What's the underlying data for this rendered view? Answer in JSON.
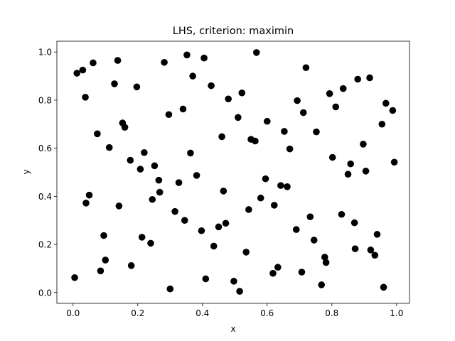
{
  "chart_data": {
    "type": "scatter",
    "title": "LHS, criterion: maximin",
    "xlabel": "x",
    "ylabel": "y",
    "xlim": [
      -0.05,
      1.04
    ],
    "ylim": [
      -0.045,
      1.045
    ],
    "xticks": [
      "0.0",
      "0.2",
      "0.4",
      "0.6",
      "0.8",
      "1.0"
    ],
    "yticks": [
      "0.0",
      "0.2",
      "0.4",
      "0.6",
      "0.8",
      "1.0"
    ],
    "grid": false,
    "marker_color": "#000000",
    "points": [
      [
        0.005,
        0.062
      ],
      [
        0.012,
        0.912
      ],
      [
        0.03,
        0.925
      ],
      [
        0.038,
        0.812
      ],
      [
        0.04,
        0.372
      ],
      [
        0.05,
        0.405
      ],
      [
        0.062,
        0.955
      ],
      [
        0.075,
        0.66
      ],
      [
        0.085,
        0.09
      ],
      [
        0.095,
        0.237
      ],
      [
        0.1,
        0.135
      ],
      [
        0.112,
        0.603
      ],
      [
        0.128,
        0.868
      ],
      [
        0.138,
        0.965
      ],
      [
        0.142,
        0.36
      ],
      [
        0.153,
        0.705
      ],
      [
        0.16,
        0.687
      ],
      [
        0.177,
        0.55
      ],
      [
        0.18,
        0.112
      ],
      [
        0.197,
        0.855
      ],
      [
        0.208,
        0.513
      ],
      [
        0.213,
        0.23
      ],
      [
        0.22,
        0.582
      ],
      [
        0.24,
        0.205
      ],
      [
        0.245,
        0.387
      ],
      [
        0.252,
        0.527
      ],
      [
        0.265,
        0.467
      ],
      [
        0.268,
        0.417
      ],
      [
        0.282,
        0.957
      ],
      [
        0.296,
        0.74
      ],
      [
        0.3,
        0.015
      ],
      [
        0.315,
        0.337
      ],
      [
        0.327,
        0.457
      ],
      [
        0.34,
        0.763
      ],
      [
        0.345,
        0.3
      ],
      [
        0.352,
        0.988
      ],
      [
        0.363,
        0.58
      ],
      [
        0.37,
        0.9
      ],
      [
        0.382,
        0.487
      ],
      [
        0.397,
        0.257
      ],
      [
        0.405,
        0.975
      ],
      [
        0.41,
        0.057
      ],
      [
        0.427,
        0.86
      ],
      [
        0.435,
        0.193
      ],
      [
        0.45,
        0.273
      ],
      [
        0.46,
        0.648
      ],
      [
        0.465,
        0.422
      ],
      [
        0.472,
        0.288
      ],
      [
        0.48,
        0.805
      ],
      [
        0.497,
        0.047
      ],
      [
        0.51,
        0.728
      ],
      [
        0.515,
        0.005
      ],
      [
        0.522,
        0.83
      ],
      [
        0.535,
        0.168
      ],
      [
        0.543,
        0.345
      ],
      [
        0.55,
        0.637
      ],
      [
        0.563,
        0.63
      ],
      [
        0.567,
        0.998
      ],
      [
        0.58,
        0.393
      ],
      [
        0.595,
        0.473
      ],
      [
        0.6,
        0.712
      ],
      [
        0.618,
        0.08
      ],
      [
        0.622,
        0.363
      ],
      [
        0.633,
        0.105
      ],
      [
        0.642,
        0.445
      ],
      [
        0.653,
        0.67
      ],
      [
        0.662,
        0.44
      ],
      [
        0.67,
        0.597
      ],
      [
        0.69,
        0.262
      ],
      [
        0.693,
        0.798
      ],
      [
        0.707,
        0.085
      ],
      [
        0.712,
        0.748
      ],
      [
        0.72,
        0.935
      ],
      [
        0.733,
        0.315
      ],
      [
        0.745,
        0.218
      ],
      [
        0.752,
        0.668
      ],
      [
        0.768,
        0.032
      ],
      [
        0.778,
        0.147
      ],
      [
        0.782,
        0.125
      ],
      [
        0.793,
        0.827
      ],
      [
        0.802,
        0.562
      ],
      [
        0.812,
        0.772
      ],
      [
        0.83,
        0.325
      ],
      [
        0.835,
        0.848
      ],
      [
        0.85,
        0.492
      ],
      [
        0.858,
        0.535
      ],
      [
        0.87,
        0.29
      ],
      [
        0.872,
        0.182
      ],
      [
        0.88,
        0.887
      ],
      [
        0.897,
        0.617
      ],
      [
        0.905,
        0.505
      ],
      [
        0.917,
        0.893
      ],
      [
        0.92,
        0.177
      ],
      [
        0.933,
        0.155
      ],
      [
        0.94,
        0.242
      ],
      [
        0.955,
        0.7
      ],
      [
        0.96,
        0.022
      ],
      [
        0.967,
        0.787
      ],
      [
        0.988,
        0.757
      ],
      [
        0.993,
        0.542
      ]
    ]
  }
}
